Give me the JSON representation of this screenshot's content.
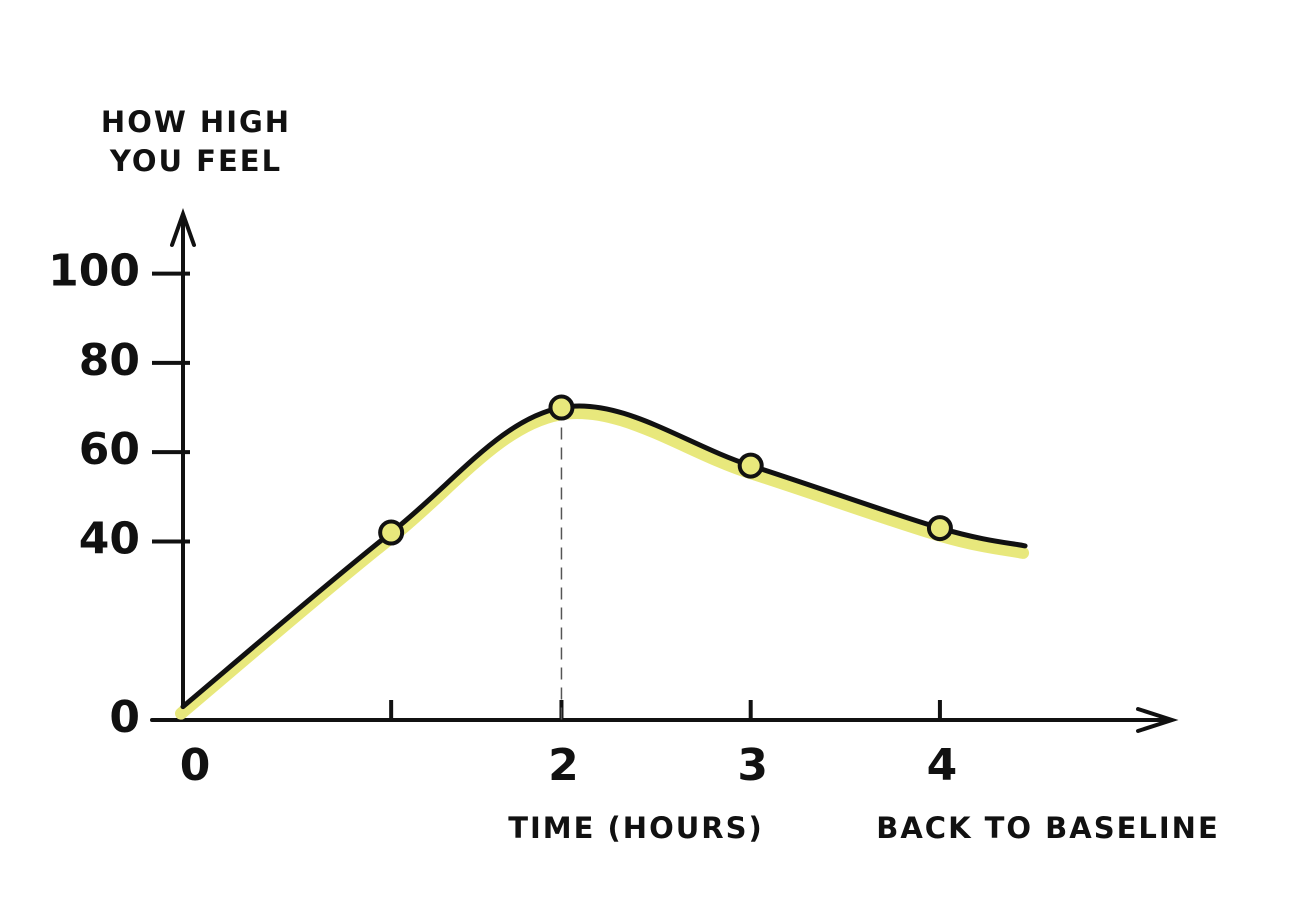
{
  "chart_data": {
    "type": "line",
    "y_label": [
      "HOW HIGH",
      "YOU FEEL"
    ],
    "x_label": "TIME (HOURS)",
    "annotation": "BACK TO BASELINE",
    "x": [
      0,
      1.1,
      2,
      3,
      4,
      4.45
    ],
    "values": [
      3,
      42,
      70,
      57,
      43,
      39
    ],
    "markers": [
      false,
      true,
      true,
      true,
      true,
      false
    ],
    "color": "#111111",
    "fill_color": "#e8e87c",
    "xlim": [
      0,
      5.2
    ],
    "xticks": [
      0,
      2,
      3,
      4
    ],
    "xticks_unlabeled": [
      1.1
    ],
    "ylim": [
      0,
      110
    ],
    "yticks": [
      0,
      40,
      60,
      80,
      100
    ],
    "peak_line": true
  }
}
